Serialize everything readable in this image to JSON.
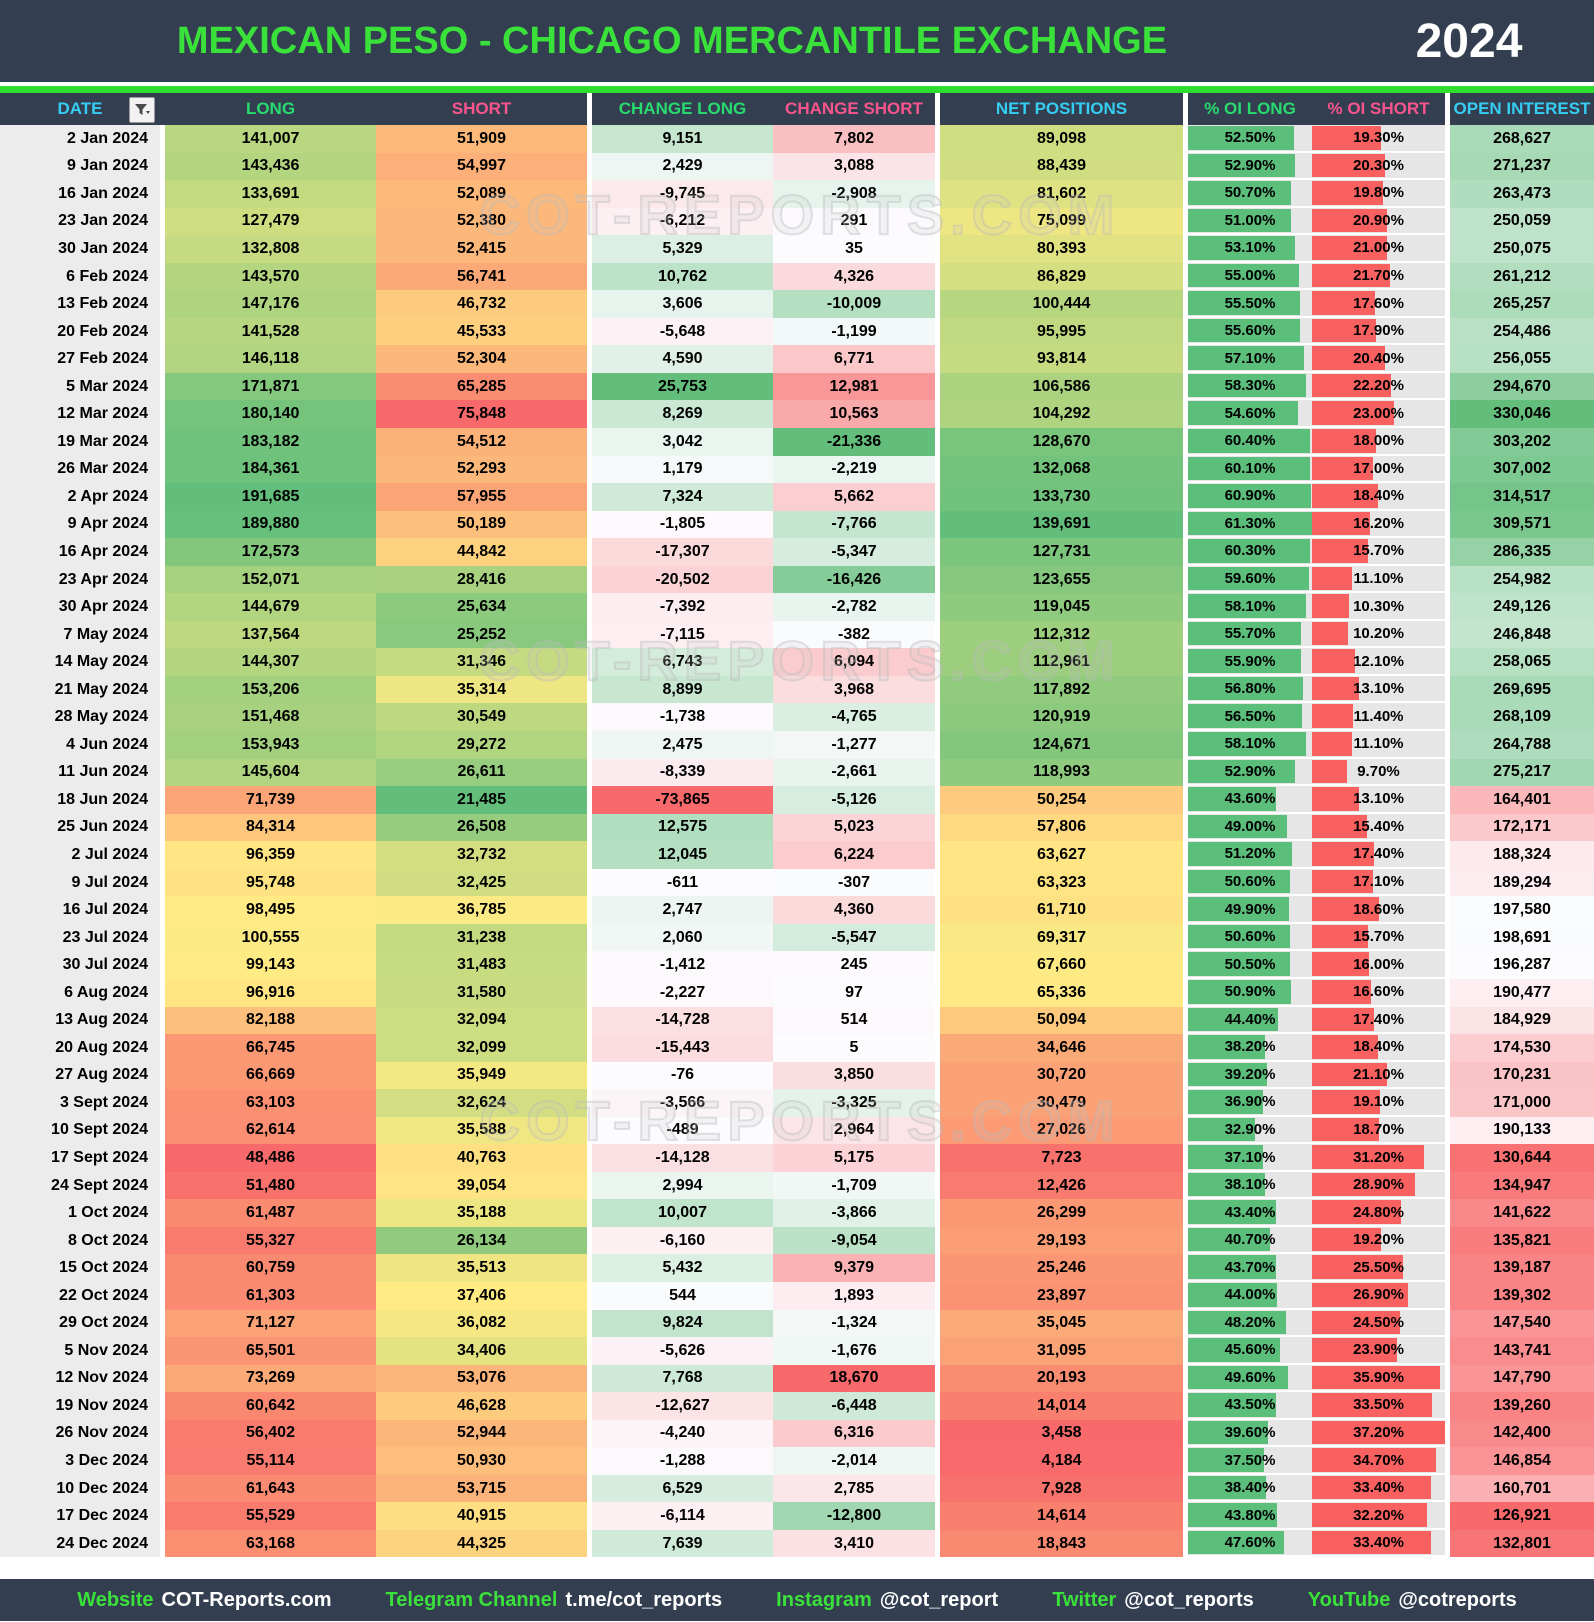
{
  "header": {
    "title": "MEXICAN PESO - CHICAGO MERCANTILE EXCHANGE",
    "year": "2024"
  },
  "watermark": {
    "text": "COT-REPORTS.COM"
  },
  "columns": [
    {
      "label": "DATE",
      "color": "cyan",
      "has_filter": true
    },
    {
      "label": "LONG",
      "color": "green"
    },
    {
      "label": "SHORT",
      "color": "pink"
    },
    {
      "label": "CHANGE LONG",
      "color": "green"
    },
    {
      "label": "CHANGE SHORT",
      "color": "pink"
    },
    {
      "label": "NET POSITIONS",
      "color": "cyan"
    },
    {
      "label": "% OI LONG",
      "color": "green"
    },
    {
      "label": "% OI SHORT",
      "color": "pink"
    },
    {
      "label": "OPEN INTEREST",
      "color": "cyan"
    }
  ],
  "conditional_formatting": {
    "scale_red": "#F8696B",
    "scale_yellow": "#FFEB84",
    "scale_green": "#63BE7B",
    "scale_white": "#FCFCFF",
    "bar_green": "#5CBE7B",
    "bar_red": "#F8615F",
    "pct_background": "#E7E6E6",
    "date_background": "#ECECEC",
    "header_background": "#333F50",
    "accent_green_line": "#2EDD2E"
  },
  "chart_data": {
    "type": "table",
    "columns": [
      "DATE",
      "LONG",
      "SHORT",
      "CHANGE LONG",
      "CHANGE SHORT",
      "NET POSITIONS",
      "% OI LONG",
      "% OI SHORT",
      "OPEN INTEREST"
    ],
    "rows": [
      [
        "2 Jan 2024",
        "141,007",
        "51,909",
        "9,151",
        "7,802",
        "89,098",
        "52.50%",
        "19.30%",
        "268,627"
      ],
      [
        "9 Jan 2024",
        "143,436",
        "54,997",
        "2,429",
        "3,088",
        "88,439",
        "52.90%",
        "20.30%",
        "271,237"
      ],
      [
        "16 Jan 2024",
        "133,691",
        "52,089",
        "-9,745",
        "-2,908",
        "81,602",
        "50.70%",
        "19.80%",
        "263,473"
      ],
      [
        "23 Jan 2024",
        "127,479",
        "52,380",
        "-6,212",
        "291",
        "75,099",
        "51.00%",
        "20.90%",
        "250,059"
      ],
      [
        "30 Jan 2024",
        "132,808",
        "52,415",
        "5,329",
        "35",
        "80,393",
        "53.10%",
        "21.00%",
        "250,075"
      ],
      [
        "6 Feb 2024",
        "143,570",
        "56,741",
        "10,762",
        "4,326",
        "86,829",
        "55.00%",
        "21.70%",
        "261,212"
      ],
      [
        "13 Feb 2024",
        "147,176",
        "46,732",
        "3,606",
        "-10,009",
        "100,444",
        "55.50%",
        "17.60%",
        "265,257"
      ],
      [
        "20 Feb 2024",
        "141,528",
        "45,533",
        "-5,648",
        "-1,199",
        "95,995",
        "55.60%",
        "17.90%",
        "254,486"
      ],
      [
        "27 Feb 2024",
        "146,118",
        "52,304",
        "4,590",
        "6,771",
        "93,814",
        "57.10%",
        "20.40%",
        "256,055"
      ],
      [
        "5 Mar 2024",
        "171,871",
        "65,285",
        "25,753",
        "12,981",
        "106,586",
        "58.30%",
        "22.20%",
        "294,670"
      ],
      [
        "12 Mar 2024",
        "180,140",
        "75,848",
        "8,269",
        "10,563",
        "104,292",
        "54.60%",
        "23.00%",
        "330,046"
      ],
      [
        "19 Mar 2024",
        "183,182",
        "54,512",
        "3,042",
        "-21,336",
        "128,670",
        "60.40%",
        "18.00%",
        "303,202"
      ],
      [
        "26 Mar 2024",
        "184,361",
        "52,293",
        "1,179",
        "-2,219",
        "132,068",
        "60.10%",
        "17.00%",
        "307,002"
      ],
      [
        "2 Apr 2024",
        "191,685",
        "57,955",
        "7,324",
        "5,662",
        "133,730",
        "60.90%",
        "18.40%",
        "314,517"
      ],
      [
        "9 Apr 2024",
        "189,880",
        "50,189",
        "-1,805",
        "-7,766",
        "139,691",
        "61.30%",
        "16.20%",
        "309,571"
      ],
      [
        "16 Apr 2024",
        "172,573",
        "44,842",
        "-17,307",
        "-5,347",
        "127,731",
        "60.30%",
        "15.70%",
        "286,335"
      ],
      [
        "23 Apr 2024",
        "152,071",
        "28,416",
        "-20,502",
        "-16,426",
        "123,655",
        "59.60%",
        "11.10%",
        "254,982"
      ],
      [
        "30 Apr 2024",
        "144,679",
        "25,634",
        "-7,392",
        "-2,782",
        "119,045",
        "58.10%",
        "10.30%",
        "249,126"
      ],
      [
        "7 May 2024",
        "137,564",
        "25,252",
        "-7,115",
        "-382",
        "112,312",
        "55.70%",
        "10.20%",
        "246,848"
      ],
      [
        "14 May 2024",
        "144,307",
        "31,346",
        "6,743",
        "6,094",
        "112,961",
        "55.90%",
        "12.10%",
        "258,065"
      ],
      [
        "21 May 2024",
        "153,206",
        "35,314",
        "8,899",
        "3,968",
        "117,892",
        "56.80%",
        "13.10%",
        "269,695"
      ],
      [
        "28 May 2024",
        "151,468",
        "30,549",
        "-1,738",
        "-4,765",
        "120,919",
        "56.50%",
        "11.40%",
        "268,109"
      ],
      [
        "4 Jun 2024",
        "153,943",
        "29,272",
        "2,475",
        "-1,277",
        "124,671",
        "58.10%",
        "11.10%",
        "264,788"
      ],
      [
        "11 Jun 2024",
        "145,604",
        "26,611",
        "-8,339",
        "-2,661",
        "118,993",
        "52.90%",
        "9.70%",
        "275,217"
      ],
      [
        "18 Jun 2024",
        "71,739",
        "21,485",
        "-73,865",
        "-5,126",
        "50,254",
        "43.60%",
        "13.10%",
        "164,401"
      ],
      [
        "25 Jun 2024",
        "84,314",
        "26,508",
        "12,575",
        "5,023",
        "57,806",
        "49.00%",
        "15.40%",
        "172,171"
      ],
      [
        "2 Jul 2024",
        "96,359",
        "32,732",
        "12,045",
        "6,224",
        "63,627",
        "51.20%",
        "17.40%",
        "188,324"
      ],
      [
        "9 Jul 2024",
        "95,748",
        "32,425",
        "-611",
        "-307",
        "63,323",
        "50.60%",
        "17.10%",
        "189,294"
      ],
      [
        "16 Jul 2024",
        "98,495",
        "36,785",
        "2,747",
        "4,360",
        "61,710",
        "49.90%",
        "18.60%",
        "197,580"
      ],
      [
        "23 Jul 2024",
        "100,555",
        "31,238",
        "2,060",
        "-5,547",
        "69,317",
        "50.60%",
        "15.70%",
        "198,691"
      ],
      [
        "30 Jul 2024",
        "99,143",
        "31,483",
        "-1,412",
        "245",
        "67,660",
        "50.50%",
        "16.00%",
        "196,287"
      ],
      [
        "6 Aug 2024",
        "96,916",
        "31,580",
        "-2,227",
        "97",
        "65,336",
        "50.90%",
        "16.60%",
        "190,477"
      ],
      [
        "13 Aug 2024",
        "82,188",
        "32,094",
        "-14,728",
        "514",
        "50,094",
        "44.40%",
        "17.40%",
        "184,929"
      ],
      [
        "20 Aug 2024",
        "66,745",
        "32,099",
        "-15,443",
        "5",
        "34,646",
        "38.20%",
        "18.40%",
        "174,530"
      ],
      [
        "27 Aug 2024",
        "66,669",
        "35,949",
        "-76",
        "3,850",
        "30,720",
        "39.20%",
        "21.10%",
        "170,231"
      ],
      [
        "3 Sept 2024",
        "63,103",
        "32,624",
        "-3,566",
        "-3,325",
        "30,479",
        "36.90%",
        "19.10%",
        "171,000"
      ],
      [
        "10 Sept 2024",
        "62,614",
        "35,588",
        "-489",
        "2,964",
        "27,026",
        "32.90%",
        "18.70%",
        "190,133"
      ],
      [
        "17 Sept 2024",
        "48,486",
        "40,763",
        "-14,128",
        "5,175",
        "7,723",
        "37.10%",
        "31.20%",
        "130,644"
      ],
      [
        "24 Sept 2024",
        "51,480",
        "39,054",
        "2,994",
        "-1,709",
        "12,426",
        "38.10%",
        "28.90%",
        "134,947"
      ],
      [
        "1 Oct 2024",
        "61,487",
        "35,188",
        "10,007",
        "-3,866",
        "26,299",
        "43.40%",
        "24.80%",
        "141,622"
      ],
      [
        "8 Oct 2024",
        "55,327",
        "26,134",
        "-6,160",
        "-9,054",
        "29,193",
        "40.70%",
        "19.20%",
        "135,821"
      ],
      [
        "15 Oct 2024",
        "60,759",
        "35,513",
        "5,432",
        "9,379",
        "25,246",
        "43.70%",
        "25.50%",
        "139,187"
      ],
      [
        "22 Oct 2024",
        "61,303",
        "37,406",
        "544",
        "1,893",
        "23,897",
        "44.00%",
        "26.90%",
        "139,302"
      ],
      [
        "29 Oct 2024",
        "71,127",
        "36,082",
        "9,824",
        "-1,324",
        "35,045",
        "48.20%",
        "24.50%",
        "147,540"
      ],
      [
        "5 Nov 2024",
        "65,501",
        "34,406",
        "-5,626",
        "-1,676",
        "31,095",
        "45.60%",
        "23.90%",
        "143,741"
      ],
      [
        "12 Nov 2024",
        "73,269",
        "53,076",
        "7,768",
        "18,670",
        "20,193",
        "49.60%",
        "35.90%",
        "147,790"
      ],
      [
        "19 Nov 2024",
        "60,642",
        "46,628",
        "-12,627",
        "-6,448",
        "14,014",
        "43.50%",
        "33.50%",
        "139,260"
      ],
      [
        "26 Nov 2024",
        "56,402",
        "52,944",
        "-4,240",
        "6,316",
        "3,458",
        "39.60%",
        "37.20%",
        "142,400"
      ],
      [
        "3 Dec 2024",
        "55,114",
        "50,930",
        "-1,288",
        "-2,014",
        "4,184",
        "37.50%",
        "34.70%",
        "146,854"
      ],
      [
        "10 Dec 2024",
        "61,643",
        "53,715",
        "6,529",
        "2,785",
        "7,928",
        "38.40%",
        "33.40%",
        "160,701"
      ],
      [
        "17 Dec 2024",
        "55,529",
        "40,915",
        "-6,114",
        "-12,800",
        "14,614",
        "43.80%",
        "32.20%",
        "126,921"
      ],
      [
        "24 Dec 2024",
        "63,168",
        "44,325",
        "7,639",
        "3,410",
        "18,843",
        "47.60%",
        "33.40%",
        "132,801"
      ]
    ]
  },
  "footer": {
    "links": [
      {
        "label": "Website",
        "value": "COT-Reports.com"
      },
      {
        "label": "Telegram Channel",
        "value": "t.me/cot_reports"
      },
      {
        "label": "Instagram",
        "value": "@cot_report"
      },
      {
        "label": "Twitter",
        "value": "@cot_reports"
      },
      {
        "label": "YouTube",
        "value": "@cotreports"
      }
    ]
  }
}
